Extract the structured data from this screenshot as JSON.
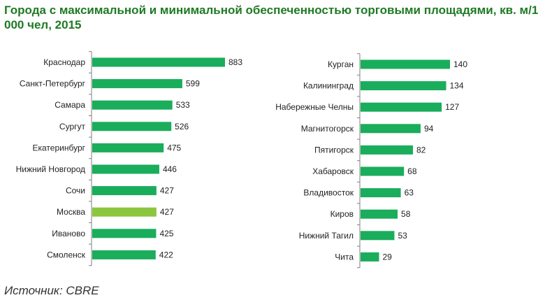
{
  "title": "Города с максимальной и минимальной обеспеченностью торговыми площадями, кв. м/1 000 чел, 2015",
  "source": "Источник: CBRE",
  "colors": {
    "bar": "#1aad5b",
    "highlight": "#8cc63f",
    "axis": "#7f7f7f",
    "title": "#1e7a23",
    "text": "#222222"
  },
  "chart_data": [
    {
      "type": "bar",
      "orientation": "horizontal",
      "categories": [
        "Краснодар",
        "Санкт-Петербург",
        "Самара",
        "Сургут",
        "Екатеринбург",
        "Нижний Новгород",
        "Сочи",
        "Москва",
        "Иваново",
        "Смоленск"
      ],
      "values": [
        883,
        599,
        533,
        526,
        475,
        446,
        427,
        427,
        425,
        422
      ],
      "highlight": [
        "Москва"
      ],
      "data_labels": true
    },
    {
      "type": "bar",
      "orientation": "horizontal",
      "categories": [
        "Курган",
        "Калининград",
        "Набережные Челны",
        "Магнитогорск",
        "Пятигорск",
        "Хабаровск",
        "Владивосток",
        "Киров",
        "Нижний Тагил",
        "Чита"
      ],
      "values": [
        140,
        134,
        127,
        94,
        82,
        68,
        63,
        58,
        53,
        29
      ],
      "highlight": [],
      "data_labels": true
    }
  ]
}
